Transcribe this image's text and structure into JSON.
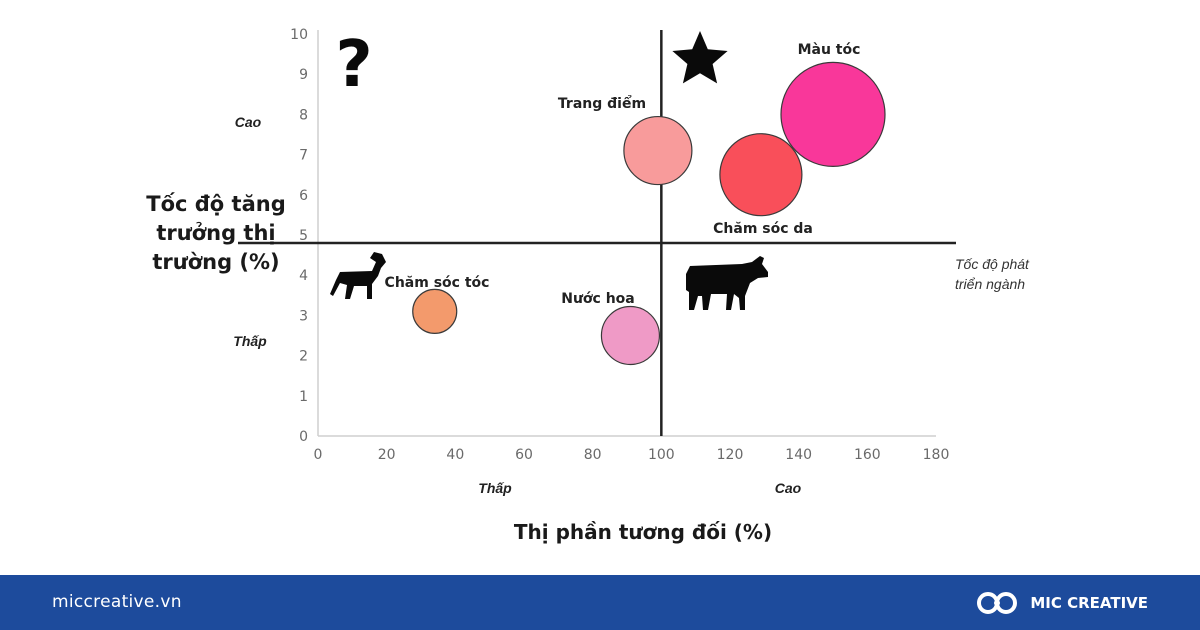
{
  "chart_data": {
    "type": "scatter",
    "subtype": "bubble",
    "xlabel": "Thị phần tương đối (%)",
    "ylabel": [
      "Tốc độ tăng",
      "trưởng thị",
      "trường (%)"
    ],
    "xlim": [
      0,
      180
    ],
    "ylim": [
      0,
      10
    ],
    "xticks": [
      0,
      20,
      40,
      60,
      80,
      100,
      120,
      140,
      160,
      180
    ],
    "yticks": [
      0,
      1,
      2,
      3,
      4,
      5,
      6,
      7,
      8,
      9,
      10
    ],
    "grid": false,
    "divider": {
      "x": 100,
      "y": 4.8
    },
    "points": [
      {
        "name": "Màu tóc",
        "x": 150,
        "y": 8,
        "r": 52,
        "color": "#f9379a"
      },
      {
        "name": "Trang điểm",
        "x": 99,
        "y": 7.1,
        "r": 34,
        "color": "#f89b9b"
      },
      {
        "name": "Chăm sóc da",
        "x": 129,
        "y": 6.5,
        "r": 41,
        "color": "#f94f5a"
      },
      {
        "name": "Chăm sóc tóc",
        "x": 34,
        "y": 3.1,
        "r": 22,
        "color": "#f39a6c"
      },
      {
        "name": "Nước hoa",
        "x": 91,
        "y": 2.5,
        "r": 29,
        "color": "#ef9ac6"
      }
    ],
    "annotations": {
      "y_high": "Cao",
      "y_low": "Thấp",
      "x_low": "Thấp",
      "x_high": "Cao",
      "industry": [
        "Tốc độ phát",
        "triển ngành"
      ]
    },
    "quadrant_icons": [
      "question-mark",
      "star",
      "dog",
      "cow"
    ]
  },
  "footer": {
    "site": "miccreative.vn",
    "brand": "MIC CREATIVE",
    "bg_color": "#1d4b9c"
  }
}
